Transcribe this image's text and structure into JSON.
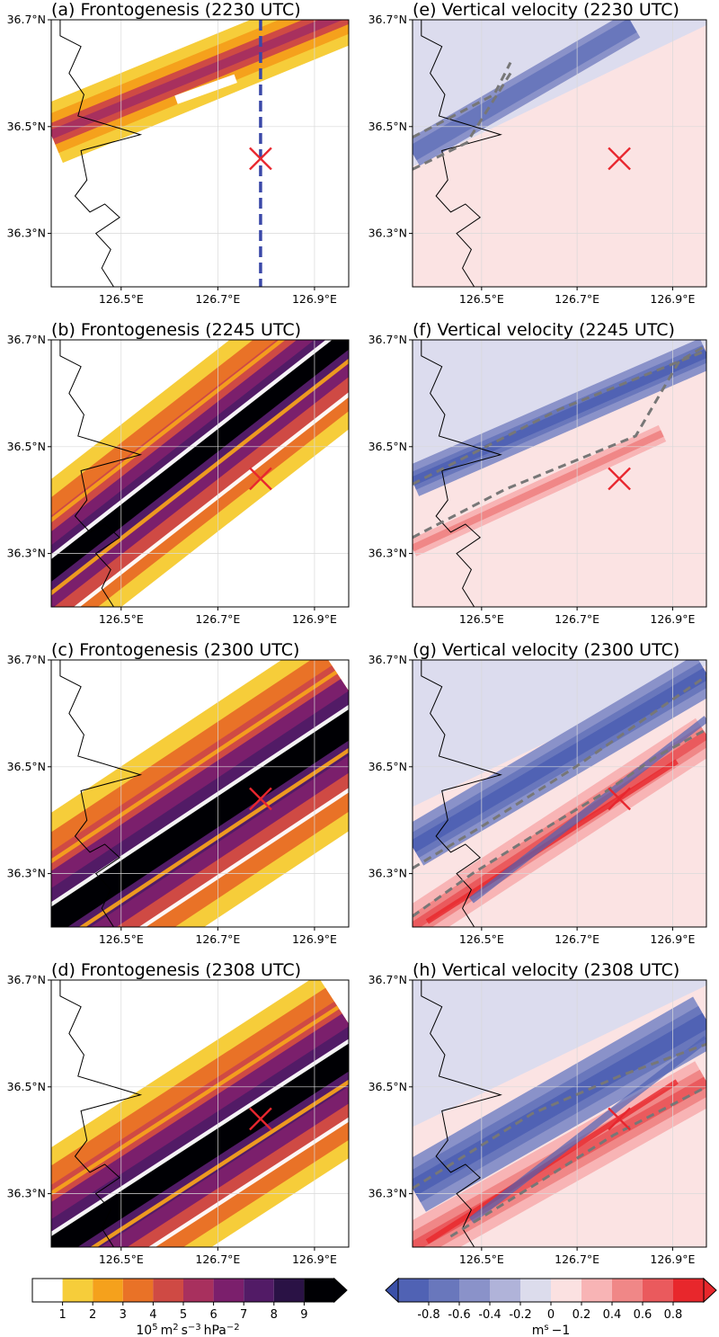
{
  "chart_data": [
    {
      "panel": "a",
      "type": "heatmap",
      "field": "frontogenesis",
      "title": "(a) Frontogenesis (2230 UTC)",
      "x_ticks": [
        "126.5°E",
        "126.7°E",
        "126.9°E"
      ],
      "y_ticks": [
        "36.7°N",
        "36.5°N",
        "36.3°N"
      ],
      "xlim": [
        126.45,
        126.99
      ],
      "ylim": [
        36.2,
        36.7
      ],
      "marker": {
        "lon": 126.83,
        "lat": 36.44,
        "label": "×"
      },
      "cross_section_line": {
        "lon": 126.83
      },
      "fronts": []
    },
    {
      "panel": "b",
      "type": "heatmap",
      "field": "frontogenesis",
      "title": "(b) Frontogenesis (2245 UTC)",
      "x_ticks": [
        "126.5°E",
        "126.7°E",
        "126.9°E"
      ],
      "y_ticks": [
        "36.7°N",
        "36.5°N",
        "36.3°N"
      ],
      "xlim": [
        126.45,
        126.99
      ],
      "ylim": [
        36.2,
        36.7
      ],
      "marker": {
        "lon": 126.83,
        "lat": 36.44,
        "label": "×"
      },
      "fronts": []
    },
    {
      "panel": "c",
      "type": "heatmap",
      "field": "frontogenesis",
      "title": "(c) Frontogenesis (2300 UTC)",
      "x_ticks": [
        "126.5°E",
        "126.7°E",
        "126.9°E"
      ],
      "y_ticks": [
        "36.7°N",
        "36.5°N",
        "36.3°N"
      ],
      "xlim": [
        126.45,
        126.99
      ],
      "ylim": [
        36.2,
        36.7
      ],
      "marker": {
        "lon": 126.83,
        "lat": 36.44,
        "label": "×"
      },
      "fronts": []
    },
    {
      "panel": "d",
      "type": "heatmap",
      "field": "frontogenesis",
      "title": "(d) Frontogenesis (2308 UTC)",
      "x_ticks": [
        "126.5°E",
        "126.7°E",
        "126.9°E"
      ],
      "y_ticks": [
        "36.7°N",
        "36.5°N",
        "36.3°N"
      ],
      "xlim": [
        126.45,
        126.99
      ],
      "ylim": [
        36.2,
        36.7
      ],
      "marker": {
        "lon": 126.83,
        "lat": 36.44,
        "label": "×"
      },
      "fronts": []
    },
    {
      "panel": "e",
      "type": "heatmap",
      "field": "vertical_velocity",
      "title": "(e) Vertical velocity (2230 UTC)",
      "x_ticks": [
        "126.5°E",
        "126.7°E",
        "126.9°E"
      ],
      "y_ticks": [
        "36.7°N",
        "36.5°N",
        "36.3°N"
      ],
      "xlim": [
        126.45,
        126.99
      ],
      "ylim": [
        36.2,
        36.7
      ],
      "marker": {
        "lon": 126.83,
        "lat": 36.44,
        "label": "×"
      },
      "fronts": [
        [
          [
            126.45,
            36.48
          ],
          [
            126.6,
            36.56
          ],
          [
            126.63,
            36.62
          ]
        ],
        [
          [
            126.45,
            36.42
          ],
          [
            126.55,
            36.47
          ],
          [
            126.63,
            36.6
          ]
        ]
      ]
    },
    {
      "panel": "f",
      "type": "heatmap",
      "field": "vertical_velocity",
      "title": "(f) Vertical velocity (2245 UTC)",
      "x_ticks": [
        "126.5°E",
        "126.7°E",
        "126.9°E"
      ],
      "y_ticks": [
        "36.7°N",
        "36.5°N",
        "36.3°N"
      ],
      "xlim": [
        126.45,
        126.99
      ],
      "ylim": [
        36.2,
        36.7
      ],
      "marker": {
        "lon": 126.83,
        "lat": 36.44,
        "label": "×"
      },
      "fronts": [
        [
          [
            126.45,
            36.43
          ],
          [
            126.72,
            36.57
          ],
          [
            126.99,
            36.68
          ]
        ],
        [
          [
            126.45,
            36.33
          ],
          [
            126.62,
            36.42
          ],
          [
            126.86,
            36.52
          ],
          [
            126.94,
            36.66
          ],
          [
            126.99,
            36.69
          ]
        ]
      ]
    },
    {
      "panel": "g",
      "type": "heatmap",
      "field": "vertical_velocity",
      "title": "(g) Vertical velocity (2300 UTC)",
      "x_ticks": [
        "126.5°E",
        "126.7°E",
        "126.9°E"
      ],
      "y_ticks": [
        "36.7°N",
        "36.5°N",
        "36.3°N"
      ],
      "xlim": [
        126.45,
        126.99
      ],
      "ylim": [
        36.2,
        36.7
      ],
      "marker": {
        "lon": 126.83,
        "lat": 36.44,
        "label": "×"
      },
      "fronts": [
        [
          [
            126.45,
            36.31
          ],
          [
            126.58,
            36.39
          ],
          [
            126.75,
            36.5
          ],
          [
            126.99,
            36.67
          ]
        ],
        [
          [
            126.45,
            36.22
          ],
          [
            126.56,
            36.3
          ],
          [
            126.67,
            36.37
          ],
          [
            126.8,
            36.45
          ],
          [
            126.9,
            36.52
          ],
          [
            126.99,
            36.57
          ]
        ]
      ]
    },
    {
      "panel": "h",
      "type": "heatmap",
      "field": "vertical_velocity",
      "title": "(h) Vertical velocity (2308 UTC)",
      "x_ticks": [
        "126.5°E",
        "126.7°E",
        "126.9°E"
      ],
      "y_ticks": [
        "36.7°N",
        "36.5°N",
        "36.3°N"
      ],
      "xlim": [
        126.45,
        126.99
      ],
      "ylim": [
        36.2,
        36.7
      ],
      "marker": {
        "lon": 126.83,
        "lat": 36.44,
        "label": "×"
      },
      "fronts": [
        [
          [
            126.45,
            36.31
          ],
          [
            126.56,
            36.38
          ],
          [
            126.67,
            36.45
          ],
          [
            126.83,
            36.52
          ],
          [
            126.99,
            36.58
          ]
        ],
        [
          [
            126.52,
            36.22
          ],
          [
            126.68,
            36.32
          ],
          [
            126.82,
            36.41
          ],
          [
            126.99,
            36.5
          ]
        ]
      ]
    }
  ],
  "colorbars": [
    {
      "name": "frontogenesis",
      "label_parts": [
        "10",
        "5",
        "m",
        "2",
        "s",
        "−3",
        "hPa",
        "−2"
      ],
      "ticks": [
        "1",
        "2",
        "3",
        "4",
        "5",
        "6",
        "7",
        "8",
        "9"
      ],
      "colors": [
        "#ffffff",
        "#f6cd3a",
        "#f5a11c",
        "#e97227",
        "#cf4a44",
        "#a8305e",
        "#7b1f6c",
        "#521b66",
        "#2a1245",
        "#000004"
      ],
      "extend": "max"
    },
    {
      "name": "vertical_velocity",
      "label_parts": [
        "m",
        "s",
        "−1"
      ],
      "ticks": [
        "-0.8",
        "-0.6",
        "-0.4",
        "-0.2",
        "0",
        "0.2",
        "0.4",
        "0.6",
        "0.8"
      ],
      "colors": [
        "#3a50a8",
        "#5062b4",
        "#6977bc",
        "#8a92c9",
        "#b0b3d9",
        "#dcdcec",
        "#fbe1e1",
        "#f8b4b5",
        "#f08787",
        "#ea5a5d",
        "#e8272c",
        "#e8272c"
      ],
      "extend": "both"
    }
  ],
  "colors": {
    "marker": "#e8262e",
    "cross_section_line": "#3a48a8",
    "front_line": "#777777",
    "coast": "#000000"
  }
}
